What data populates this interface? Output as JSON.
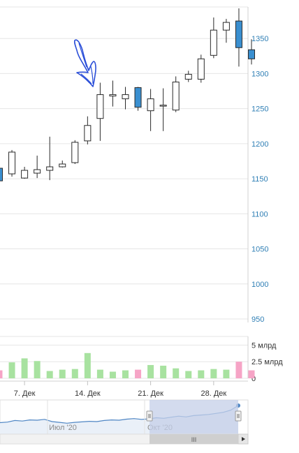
{
  "chart_data": {
    "type": "candlestick",
    "price_axis": {
      "ticks": [
        950,
        1000,
        1050,
        1100,
        1150,
        1200,
        1250,
        1300,
        1350
      ],
      "ylim": [
        945,
        1395
      ]
    },
    "volume_axis": {
      "ticks": [
        {
          "value": 0,
          "label": "0"
        },
        {
          "value": 2.5,
          "label": "2.5 млрд"
        },
        {
          "value": 5,
          "label": "5 млрд"
        }
      ],
      "ylim": [
        0,
        6.3
      ]
    },
    "x_ticks": [
      "7. Дек",
      "14. Дек",
      "21. Дек",
      "28. Дек"
    ],
    "candles": [
      {
        "open": 1165,
        "high": 1166,
        "low": 1146,
        "close": 1147,
        "volume": 1.2
      },
      {
        "open": 1157,
        "high": 1191,
        "low": 1153,
        "close": 1188,
        "volume": 2.4
      },
      {
        "open": 1151,
        "high": 1167,
        "low": 1150,
        "close": 1162,
        "volume": 3.0
      },
      {
        "open": 1158,
        "high": 1183,
        "low": 1151,
        "close": 1163,
        "volume": 2.6
      },
      {
        "open": 1162,
        "high": 1210,
        "low": 1148,
        "close": 1167,
        "volume": 1.1
      },
      {
        "open": 1167,
        "high": 1176,
        "low": 1166,
        "close": 1171,
        "volume": 1.3
      },
      {
        "open": 1173,
        "high": 1205,
        "low": 1171,
        "close": 1202,
        "volume": 1.4
      },
      {
        "open": 1204,
        "high": 1239,
        "low": 1199,
        "close": 1226,
        "volume": 3.8
      },
      {
        "open": 1236,
        "high": 1287,
        "low": 1204,
        "close": 1270,
        "volume": 1.3
      },
      {
        "open": 1268,
        "high": 1290,
        "low": 1253,
        "close": 1270,
        "volume": 1.0
      },
      {
        "open": 1264,
        "high": 1281,
        "low": 1249,
        "close": 1270,
        "volume": 1.2
      },
      {
        "open": 1280,
        "high": 1281,
        "low": 1247,
        "close": 1252,
        "volume": 1.3
      },
      {
        "open": 1247,
        "high": 1278,
        "low": 1218,
        "close": 1264,
        "volume": 2.0
      },
      {
        "open": 1254,
        "high": 1279,
        "low": 1218,
        "close": 1255,
        "volume": 1.9
      },
      {
        "open": 1248,
        "high": 1296,
        "low": 1245,
        "close": 1288,
        "volume": 1.5
      },
      {
        "open": 1292,
        "high": 1304,
        "low": 1288,
        "close": 1299,
        "volume": 1.1
      },
      {
        "open": 1292,
        "high": 1327,
        "low": 1287,
        "close": 1321,
        "volume": 1.2
      },
      {
        "open": 1326,
        "high": 1380,
        "low": 1322,
        "close": 1362,
        "volume": 1.4
      },
      {
        "open": 1362,
        "high": 1378,
        "low": 1344,
        "close": 1373,
        "volume": 1.3
      },
      {
        "open": 1375,
        "high": 1393,
        "low": 1310,
        "close": 1337,
        "volume": 2.5
      },
      {
        "open": 1334,
        "high": 1349,
        "low": 1313,
        "close": 1321,
        "volume": 1.2
      }
    ],
    "navigator": {
      "ticks": [
        "Июл '20",
        "Окт '20"
      ],
      "series": [
        0.32,
        0.34,
        0.4,
        0.38,
        0.42,
        0.41,
        0.44,
        0.36,
        0.33,
        0.3,
        0.33,
        0.35,
        0.37,
        0.36,
        0.4,
        0.42,
        0.41,
        0.45,
        0.47,
        0.44,
        0.46,
        0.5,
        0.48,
        0.52,
        0.56,
        0.53,
        0.58,
        0.6,
        0.62,
        0.66,
        0.7,
        0.78,
        0.95
      ],
      "scrollbar_label": "III"
    },
    "colors": {
      "up_body": "#ffffff",
      "down_body": "#3a8fd0",
      "candle_stroke": "#2a2a2a",
      "volume_up": "#a8e2a0",
      "volume_down": "#f6a4c6",
      "price_tick": "#2f7fb5",
      "annotation": "#2b4fd8",
      "navigator_fill": "#c4cfe8",
      "navigator_line": "#4f86c4"
    }
  }
}
